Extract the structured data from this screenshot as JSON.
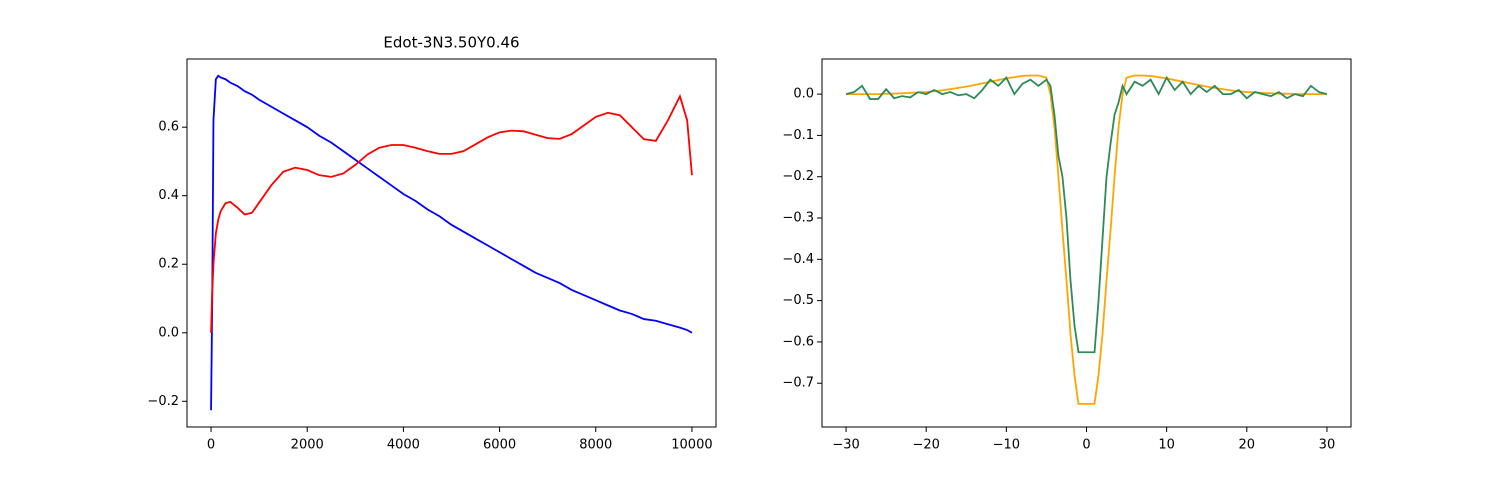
{
  "chart_data": [
    {
      "type": "line",
      "title": "Edot-3N3.50Y0.46",
      "x": [
        0,
        25,
        50,
        100,
        150,
        200,
        300,
        400,
        550,
        700,
        850,
        1000,
        1250,
        1500,
        1750,
        2000,
        2250,
        2500,
        2750,
        3000,
        3250,
        3500,
        3750,
        4000,
        4250,
        4500,
        4750,
        5000,
        5250,
        5500,
        5750,
        6000,
        6250,
        6500,
        6750,
        7000,
        7250,
        7500,
        7750,
        8000,
        8250,
        8500,
        8750,
        9000,
        9250,
        9500,
        9750,
        9900,
        10000
      ],
      "series": [
        {
          "color": "#0000ff",
          "values": [
            -0.226,
            0.1,
            0.62,
            0.74,
            0.75,
            0.745,
            0.74,
            0.73,
            0.72,
            0.705,
            0.695,
            0.68,
            0.66,
            0.64,
            0.62,
            0.6,
            0.575,
            0.555,
            0.53,
            0.505,
            0.48,
            0.455,
            0.43,
            0.405,
            0.385,
            0.36,
            0.34,
            0.315,
            0.295,
            0.275,
            0.255,
            0.235,
            0.215,
            0.195,
            0.175,
            0.16,
            0.145,
            0.125,
            0.11,
            0.095,
            0.08,
            0.065,
            0.055,
            0.04,
            0.035,
            0.025,
            0.015,
            0.008,
            0.0
          ]
        },
        {
          "color": "#ff0000",
          "values": [
            0.0,
            0.12,
            0.2,
            0.29,
            0.33,
            0.355,
            0.378,
            0.382,
            0.365,
            0.345,
            0.35,
            0.38,
            0.43,
            0.47,
            0.482,
            0.475,
            0.46,
            0.455,
            0.465,
            0.49,
            0.52,
            0.54,
            0.548,
            0.548,
            0.54,
            0.53,
            0.522,
            0.522,
            0.53,
            0.55,
            0.57,
            0.585,
            0.59,
            0.588,
            0.578,
            0.568,
            0.566,
            0.58,
            0.605,
            0.63,
            0.642,
            0.635,
            0.6,
            0.565,
            0.56,
            0.62,
            0.69,
            0.62,
            0.46
          ]
        }
      ],
      "xlim": [
        -500,
        10500
      ],
      "xticks": [
        0,
        2000,
        4000,
        6000,
        8000,
        10000
      ],
      "ylim": [
        -0.275,
        0.799
      ],
      "yticks": [
        {
          "value": -0.2,
          "label": "−0.2"
        },
        {
          "value": 0,
          "label": "0.0"
        },
        0.2,
        0.4,
        0.6
      ]
    },
    {
      "type": "line",
      "x": [
        -30,
        -29,
        -28,
        -27,
        -26,
        -25,
        -24,
        -23,
        -22,
        -21,
        -20,
        -19,
        -18,
        -17,
        -16,
        -15,
        -14,
        -13,
        -12,
        -11,
        -10,
        -9,
        -8,
        -7,
        -6,
        -5,
        -4.5,
        -4,
        -3.5,
        -3,
        -2.5,
        -2,
        -1.5,
        -1,
        0,
        1,
        1.5,
        2,
        2.5,
        3,
        3.5,
        4,
        4.5,
        5,
        6,
        7,
        8,
        9,
        10,
        11,
        12,
        13,
        14,
        15,
        16,
        17,
        18,
        19,
        20,
        21,
        22,
        23,
        24,
        25,
        26,
        27,
        28,
        29,
        30
      ],
      "series": [
        {
          "color": "#ffa500",
          "values": [
            0,
            0,
            0,
            0,
            0,
            0.001,
            0.001,
            0.002,
            0.003,
            0.004,
            0.005,
            0.007,
            0.009,
            0.012,
            0.015,
            0.018,
            0.022,
            0.026,
            0.03,
            0.034,
            0.038,
            0.041,
            0.044,
            0.045,
            0.045,
            0.04,
            0.0,
            -0.08,
            -0.2,
            -0.33,
            -0.45,
            -0.58,
            -0.68,
            -0.75,
            -0.75,
            -0.75,
            -0.68,
            -0.58,
            -0.45,
            -0.33,
            -0.2,
            -0.08,
            0.0,
            0.04,
            0.045,
            0.045,
            0.044,
            0.041,
            0.038,
            0.034,
            0.03,
            0.026,
            0.022,
            0.018,
            0.015,
            0.012,
            0.009,
            0.007,
            0.005,
            0.004,
            0.003,
            0.002,
            0.001,
            0.001,
            0,
            0,
            0,
            0,
            0
          ]
        },
        {
          "color": "#2e8b57",
          "values": [
            0,
            0.005,
            0.02,
            -0.012,
            -0.012,
            0.012,
            -0.01,
            -0.005,
            -0.008,
            0.005,
            0,
            0.01,
            0,
            0.005,
            -0.003,
            0,
            -0.01,
            0.01,
            0.035,
            0.02,
            0.04,
            0,
            0.025,
            0.035,
            0.02,
            0.035,
            0.02,
            -0.05,
            -0.15,
            -0.2,
            -0.3,
            -0.45,
            -0.56,
            -0.625,
            -0.625,
            -0.625,
            -0.5,
            -0.35,
            -0.2,
            -0.12,
            -0.05,
            -0.02,
            0.02,
            0,
            0.03,
            0.02,
            0.035,
            0,
            0.04,
            0.01,
            0.03,
            0,
            0.02,
            0.005,
            0.02,
            0,
            0,
            0.01,
            -0.01,
            0.005,
            0,
            -0.005,
            0.005,
            -0.01,
            0,
            -0.005,
            0.02,
            0.005,
            0
          ]
        }
      ],
      "xlim": [
        -33,
        33
      ],
      "xticks": [
        {
          "value": -30,
          "label": "−30"
        },
        {
          "value": -20,
          "label": "−20"
        },
        {
          "value": -10,
          "label": "−10"
        },
        0,
        10,
        20,
        30
      ],
      "ylim": [
        -0.806,
        0.085
      ],
      "yticks": [
        {
          "value": 0,
          "label": "0.0"
        },
        {
          "value": -0.1,
          "label": "−0.1"
        },
        {
          "value": -0.2,
          "label": "−0.2"
        },
        {
          "value": -0.3,
          "label": "−0.3"
        },
        {
          "value": -0.4,
          "label": "−0.4"
        },
        {
          "value": -0.5,
          "label": "−0.5"
        },
        {
          "value": -0.6,
          "label": "−0.6"
        },
        {
          "value": -0.7,
          "label": "−0.7"
        }
      ]
    }
  ]
}
